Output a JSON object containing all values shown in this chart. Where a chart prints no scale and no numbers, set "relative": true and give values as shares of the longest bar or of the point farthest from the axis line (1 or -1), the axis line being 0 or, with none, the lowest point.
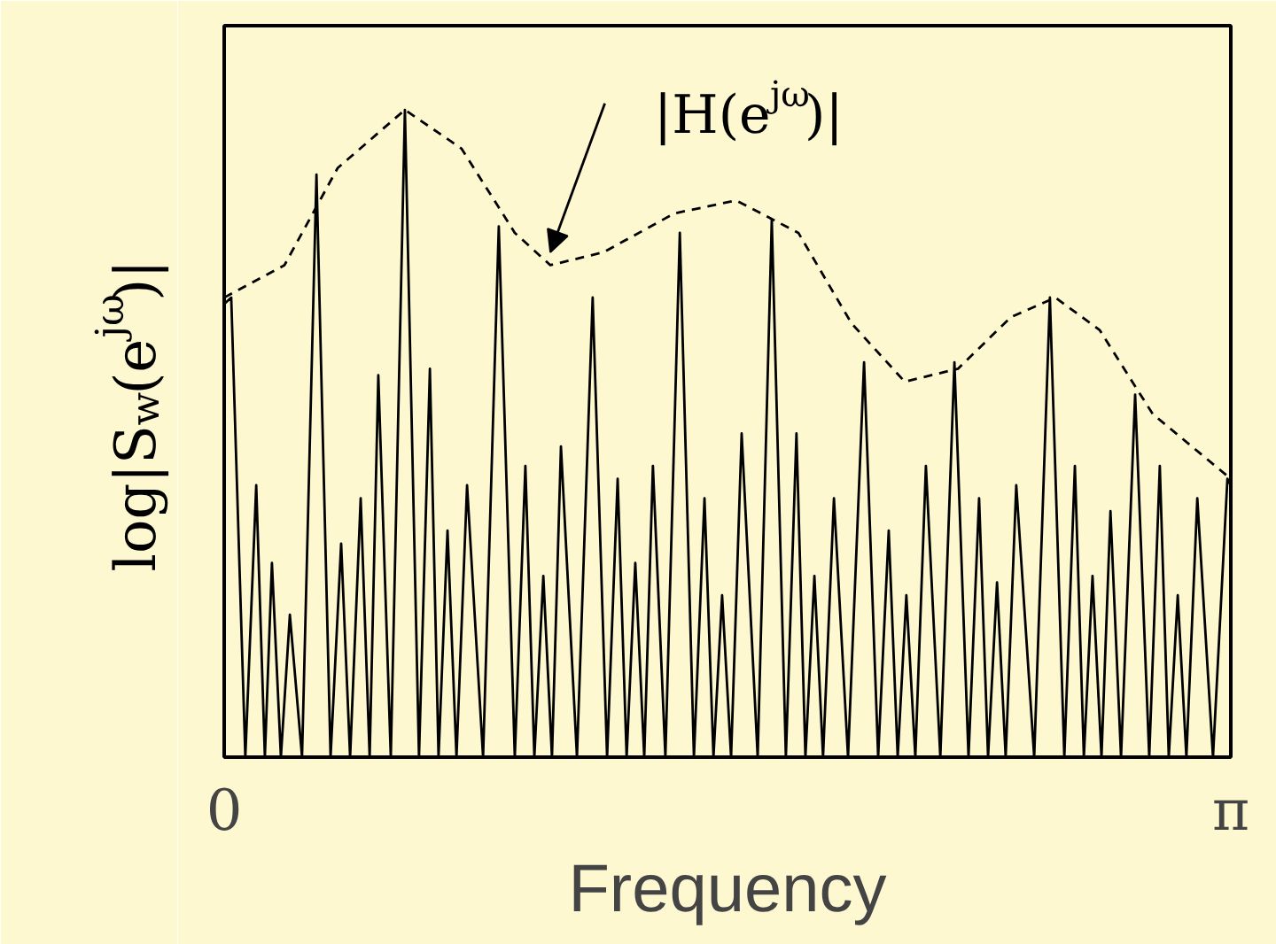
{
  "chart_data": {
    "type": "line",
    "relative": true,
    "xlabel": "Frequency",
    "ylabel": "log|S$_{w}$(e$^{jω}$)|",
    "xlim": [
      0,
      3.1416
    ],
    "xticks": [
      {
        "value": 0,
        "label": "0"
      },
      {
        "value": 3.1416,
        "label": "π"
      }
    ],
    "tick_labels": "x",
    "annotations": [
      {
        "text": "|H(e$^{jω}$)|",
        "x": 1.018,
        "y": 0.76
      }
    ],
    "series": [
      {
        "color": "#000000",
        "line_style": "solid",
        "x": [
          0,
          0.022,
          0.066,
          0.1,
          0.127,
          0.149,
          0.177,
          0.205,
          0.243,
          0.288,
          0.332,
          0.365,
          0.393,
          0.426,
          0.454,
          0.481,
          0.52,
          0.564,
          0.608,
          0.642,
          0.669,
          0.697,
          0.725,
          0.758,
          0.808,
          0.857,
          0.907,
          0.94,
          0.968,
          0.996,
          1.023,
          1.051,
          1.101,
          1.15,
          1.195,
          1.228,
          1.256,
          1.283,
          1.311,
          1.338,
          1.377,
          1.422,
          1.466,
          1.499,
          1.527,
          1.554,
          1.582,
          1.615,
          1.665,
          1.709,
          1.753,
          1.786,
          1.814,
          1.842,
          1.869,
          1.903,
          1.947,
          1.997,
          2.041,
          2.074,
          2.102,
          2.129,
          2.157,
          2.19,
          2.235,
          2.279,
          2.323,
          2.356,
          2.384,
          2.412,
          2.439,
          2.472,
          2.528,
          2.577,
          2.622,
          2.655,
          2.683,
          2.71,
          2.738,
          2.766,
          2.799,
          2.843,
          2.887,
          2.92,
          2.948,
          2.976,
          3.003,
          3.037,
          3.086,
          3.131,
          3.1416
        ],
        "values": [
          0.7,
          0.71,
          0,
          0.42,
          0,
          0.3,
          0,
          0.22,
          0,
          0.9,
          0,
          0.33,
          0,
          0.4,
          0,
          0.59,
          0,
          1.0,
          0,
          0.6,
          0,
          0.35,
          0,
          0.42,
          0,
          0.82,
          0,
          0.45,
          0,
          0.28,
          0,
          0.48,
          0,
          0.71,
          0,
          0.43,
          0,
          0.3,
          0,
          0.45,
          0,
          0.81,
          0,
          0.4,
          0,
          0.25,
          0,
          0.5,
          0,
          0.83,
          0,
          0.5,
          0,
          0.28,
          0,
          0.4,
          0,
          0.61,
          0,
          0.35,
          0,
          0.25,
          0,
          0.45,
          0,
          0.61,
          0,
          0.4,
          0,
          0.27,
          0,
          0.42,
          0,
          0.71,
          0,
          0.45,
          0,
          0.28,
          0,
          0.38,
          0,
          0.56,
          0,
          0.45,
          0,
          0.25,
          0,
          0.4,
          0,
          0.43,
          0.42
        ]
      },
      {
        "color": "#000000",
        "line_style": "dashed",
        "x": [
          0,
          0.188,
          0.354,
          0.564,
          0.741,
          0.907,
          1.018,
          1.184,
          1.405,
          1.598,
          1.792,
          1.958,
          2.124,
          2.29,
          2.456,
          2.594,
          2.732,
          2.898,
          3.1416
        ],
        "values": [
          0.71,
          0.76,
          0.91,
          1.0,
          0.94,
          0.81,
          0.76,
          0.78,
          0.84,
          0.86,
          0.81,
          0.67,
          0.58,
          0.6,
          0.68,
          0.71,
          0.66,
          0.53,
          0.43
        ]
      }
    ]
  }
}
